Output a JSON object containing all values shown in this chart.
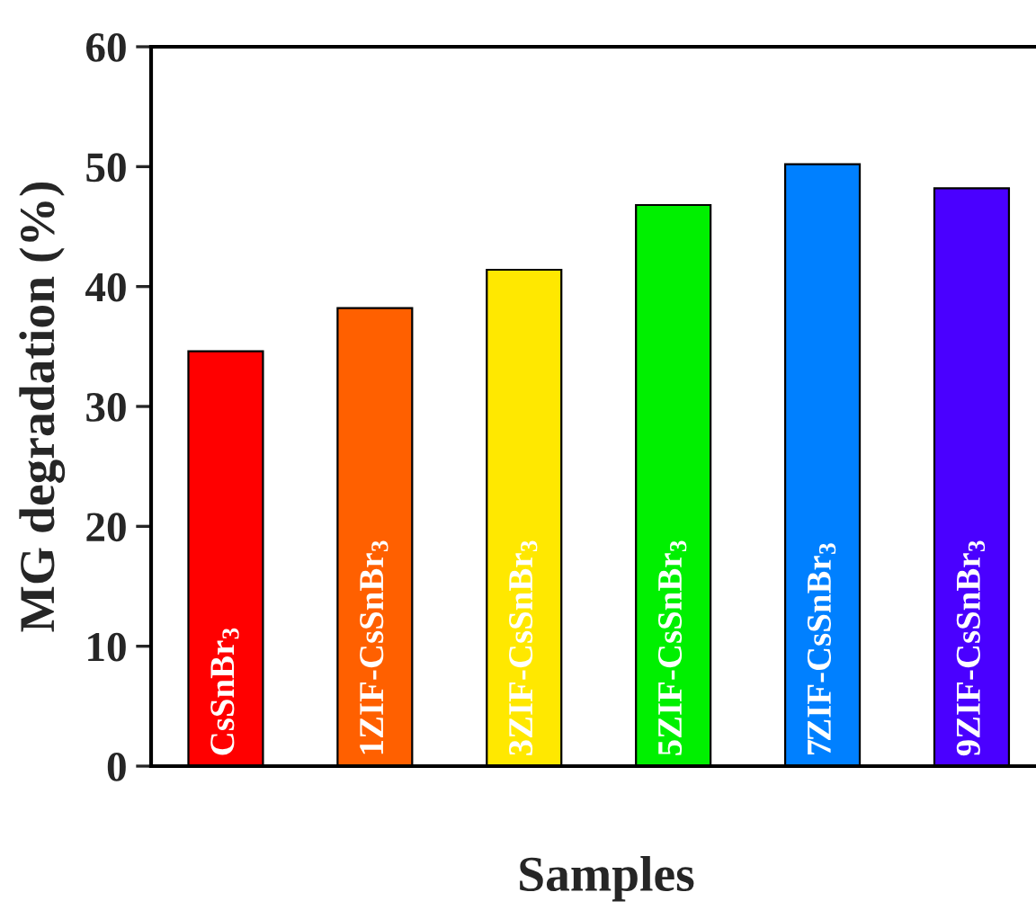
{
  "chart_data": {
    "type": "bar",
    "xlabel": "Samples",
    "ylabel": "MG degradation (%)",
    "categories": [
      "CsSnBr$_{3}$",
      "1ZIF-CsSnBr$_{3}$",
      "3ZIF-CsSnBr$_{3}$",
      "5ZIF-CsSnBr$_{3}$",
      "7ZIF-CsSnBr$_{3}$",
      "9ZIF-CsSnBr$_{3}$"
    ],
    "values": [
      34.6,
      38.2,
      41.4,
      46.8,
      50.2,
      48.2
    ],
    "colors": [
      "#ff0000",
      "#ff6000",
      "#ffe800",
      "#00f000",
      "#0080ff",
      "#4a00ff"
    ],
    "ylim": [
      0,
      60
    ],
    "yticks": [
      0,
      10,
      20,
      30,
      40,
      50,
      60
    ],
    "grid": false,
    "legend": false
  }
}
